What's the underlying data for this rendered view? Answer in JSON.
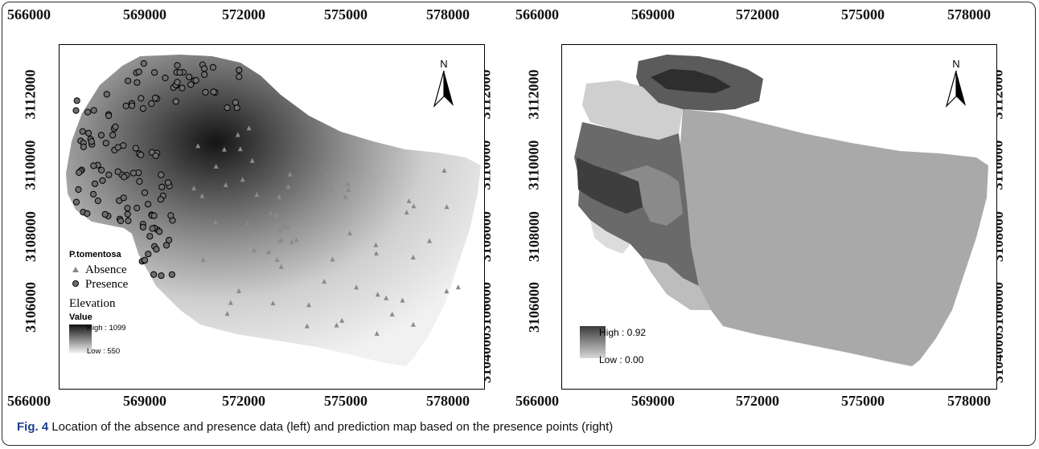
{
  "caption": {
    "label": "Fig. 4",
    "text": " Location of the absence and presence data (left) and prediction map based on the presence points (right)"
  },
  "left_map": {
    "x_ticks": [
      "566000",
      "569000",
      "572000",
      "575000",
      "578000"
    ],
    "y_ticks_left": [
      "3112000",
      "3110000",
      "3108000",
      "3106000"
    ],
    "y_ticks_right": [
      "3112000",
      "3110000",
      "3108000",
      "3106000",
      "3104000"
    ],
    "north_label": "N",
    "legend": {
      "species_title": "P.tomentosa",
      "absence_label": "Absence",
      "presence_label": "Presence",
      "elevation_title": "Elevation",
      "value_label": "Value",
      "high_label": "High : 1099",
      "low_label": "Low : 550"
    }
  },
  "right_map": {
    "x_ticks": [
      "566000",
      "569000",
      "572000",
      "575000",
      "578000"
    ],
    "y_ticks_left": [
      "3112000",
      "3110000",
      "3108000",
      "3106000"
    ],
    "y_ticks_right": [
      "3112000",
      "3110000",
      "3108000",
      "3106000",
      "3104000"
    ],
    "north_label": "N",
    "legend": {
      "high_label": "High : 0.92",
      "low_label": "Low : 0.00"
    }
  },
  "colors": {
    "caption_label": "#1c3f8e",
    "elevation_high": "#111111",
    "elevation_low": "#f4f4f4",
    "prediction_flat": "#a9a9a9",
    "absence_marker": "#8a8a8a",
    "presence_marker": "#6e6e6e"
  }
}
